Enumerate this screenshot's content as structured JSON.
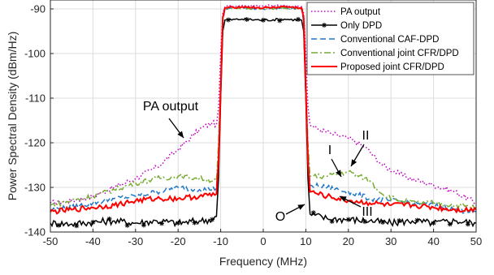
{
  "chart_data": {
    "type": "line",
    "title": "",
    "xlabel": "Frequency (MHz)",
    "ylabel": "Power Spectral Density (dBm/Hz)",
    "xlim": [
      -50,
      50
    ],
    "ylim": [
      -140,
      -88
    ],
    "xticks": [
      -50,
      -40,
      -30,
      -20,
      -10,
      0,
      10,
      20,
      30,
      40,
      50
    ],
    "yticks": [
      -140,
      -130,
      -120,
      -110,
      -100,
      -90
    ],
    "grid": true,
    "legend_position": "top-right",
    "series": [
      {
        "name": "PA output",
        "color": "#c000c0",
        "dash": "dotted",
        "marker": "none",
        "points": [
          [
            -50,
            -133.5
          ],
          [
            -45,
            -133
          ],
          [
            -40,
            -132
          ],
          [
            -35,
            -130
          ],
          [
            -30,
            -128
          ],
          [
            -25,
            -125.5
          ],
          [
            -20,
            -121.5
          ],
          [
            -15,
            -117
          ],
          [
            -12,
            -115.5
          ],
          [
            -11,
            -116
          ],
          [
            -10.5,
            -112
          ],
          [
            -10,
            -100
          ],
          [
            -9.5,
            -91
          ],
          [
            -9,
            -89.5
          ],
          [
            -5,
            -89.2
          ],
          [
            0,
            -89.3
          ],
          [
            5,
            -89.2
          ],
          [
            9,
            -89.5
          ],
          [
            9.5,
            -91
          ],
          [
            10,
            -100
          ],
          [
            10.5,
            -112
          ],
          [
            11,
            -116
          ],
          [
            13,
            -117
          ],
          [
            16,
            -118
          ],
          [
            20,
            -119
          ],
          [
            24,
            -121
          ],
          [
            28,
            -125
          ],
          [
            32,
            -127
          ],
          [
            36,
            -128.5
          ],
          [
            40,
            -129.5
          ],
          [
            45,
            -131
          ],
          [
            50,
            -133.5
          ]
        ]
      },
      {
        "name": "Only DPD",
        "color": "#000000",
        "dash": "solid",
        "marker": "asterisk",
        "points": [
          [
            -50,
            -138
          ],
          [
            -45,
            -138.2
          ],
          [
            -40,
            -137.8
          ],
          [
            -35,
            -137.5
          ],
          [
            -30,
            -138
          ],
          [
            -25,
            -137.5
          ],
          [
            -20,
            -138
          ],
          [
            -15,
            -137.5
          ],
          [
            -12,
            -137.2
          ],
          [
            -11,
            -136.5
          ],
          [
            -10.5,
            -128
          ],
          [
            -10,
            -110
          ],
          [
            -9.5,
            -95
          ],
          [
            -9,
            -92.5
          ],
          [
            -5,
            -92.3
          ],
          [
            0,
            -92.5
          ],
          [
            5,
            -92.3
          ],
          [
            9,
            -92.5
          ],
          [
            9.5,
            -95
          ],
          [
            10,
            -110
          ],
          [
            10.5,
            -128
          ],
          [
            11,
            -136
          ],
          [
            15,
            -137
          ],
          [
            20,
            -137.2
          ],
          [
            25,
            -137.5
          ],
          [
            30,
            -138
          ],
          [
            35,
            -137.5
          ],
          [
            40,
            -138
          ],
          [
            45,
            -137.5
          ],
          [
            50,
            -138
          ]
        ]
      },
      {
        "name": "Conventional CAF-DPD",
        "color": "#1f77c8",
        "dash": "dashed",
        "marker": "none",
        "points": [
          [
            -50,
            -135
          ],
          [
            -45,
            -134.5
          ],
          [
            -40,
            -133.5
          ],
          [
            -35,
            -132.5
          ],
          [
            -30,
            -132
          ],
          [
            -25,
            -131
          ],
          [
            -20,
            -130
          ],
          [
            -15,
            -130.5
          ],
          [
            -11,
            -130.2
          ],
          [
            -10.5,
            -122
          ],
          [
            -10,
            -108
          ],
          [
            -9.5,
            -93
          ],
          [
            -9,
            -90
          ],
          [
            -5,
            -89.8
          ],
          [
            0,
            -90
          ],
          [
            5,
            -89.8
          ],
          [
            9,
            -90
          ],
          [
            9.5,
            -93
          ],
          [
            10,
            -108
          ],
          [
            10.5,
            -122
          ],
          [
            11,
            -129.5
          ],
          [
            15,
            -130
          ],
          [
            20,
            -131
          ],
          [
            25,
            -132.5
          ],
          [
            30,
            -133
          ],
          [
            35,
            -133.5
          ],
          [
            40,
            -134
          ],
          [
            45,
            -135
          ],
          [
            50,
            -135.5
          ]
        ]
      },
      {
        "name": "Conventional joint CFR/DPD",
        "color": "#77ac30",
        "dash": "dashdot",
        "marker": "none",
        "points": [
          [
            -50,
            -134
          ],
          [
            -45,
            -133
          ],
          [
            -40,
            -132
          ],
          [
            -35,
            -130.5
          ],
          [
            -30,
            -129
          ],
          [
            -25,
            -128
          ],
          [
            -20,
            -127.5
          ],
          [
            -15,
            -128
          ],
          [
            -11,
            -128.5
          ],
          [
            -10.5,
            -120
          ],
          [
            -10,
            -106
          ],
          [
            -9.5,
            -92
          ],
          [
            -9,
            -90
          ],
          [
            -5,
            -89.8
          ],
          [
            0,
            -90
          ],
          [
            5,
            -89.8
          ],
          [
            9,
            -90
          ],
          [
            9.5,
            -92
          ],
          [
            10,
            -106
          ],
          [
            10.5,
            -120
          ],
          [
            11,
            -127.5
          ],
          [
            15,
            -127.5
          ],
          [
            20,
            -126.5
          ],
          [
            25,
            -128.5
          ],
          [
            28,
            -131.5
          ],
          [
            32,
            -133
          ],
          [
            36,
            -133.5
          ],
          [
            40,
            -133.5
          ],
          [
            45,
            -134
          ],
          [
            50,
            -134.5
          ]
        ]
      },
      {
        "name": "Proposed joint CFR/DPD",
        "color": "#ff0000",
        "dash": "solid",
        "marker": "none",
        "points": [
          [
            -50,
            -135.5
          ],
          [
            -45,
            -135
          ],
          [
            -40,
            -134.5
          ],
          [
            -35,
            -134
          ],
          [
            -30,
            -133
          ],
          [
            -25,
            -132.5
          ],
          [
            -20,
            -132.5
          ],
          [
            -15,
            -132
          ],
          [
            -11,
            -131.5
          ],
          [
            -10.5,
            -124
          ],
          [
            -10,
            -108
          ],
          [
            -9.5,
            -92
          ],
          [
            -9,
            -89.8
          ],
          [
            -5,
            -89.5
          ],
          [
            0,
            -89.8
          ],
          [
            5,
            -89.5
          ],
          [
            9,
            -89.8
          ],
          [
            9.5,
            -92
          ],
          [
            10,
            -108
          ],
          [
            10.5,
            -124
          ],
          [
            11,
            -131
          ],
          [
            15,
            -132
          ],
          [
            20,
            -133
          ],
          [
            25,
            -133.5
          ],
          [
            30,
            -134
          ],
          [
            35,
            -134
          ],
          [
            40,
            -134.5
          ],
          [
            45,
            -135
          ],
          [
            50,
            -135
          ]
        ]
      }
    ],
    "annotations": [
      {
        "text": "PA output",
        "xy": [
          -18,
          -120
        ]
      },
      {
        "text": "I",
        "xy": [
          16,
          -129
        ]
      },
      {
        "text": "II",
        "xy": [
          22,
          -126.5
        ]
      },
      {
        "text": "III",
        "xy": [
          18,
          -132
        ]
      },
      {
        "text": "O",
        "xy": [
          10,
          -136.5
        ]
      }
    ]
  }
}
